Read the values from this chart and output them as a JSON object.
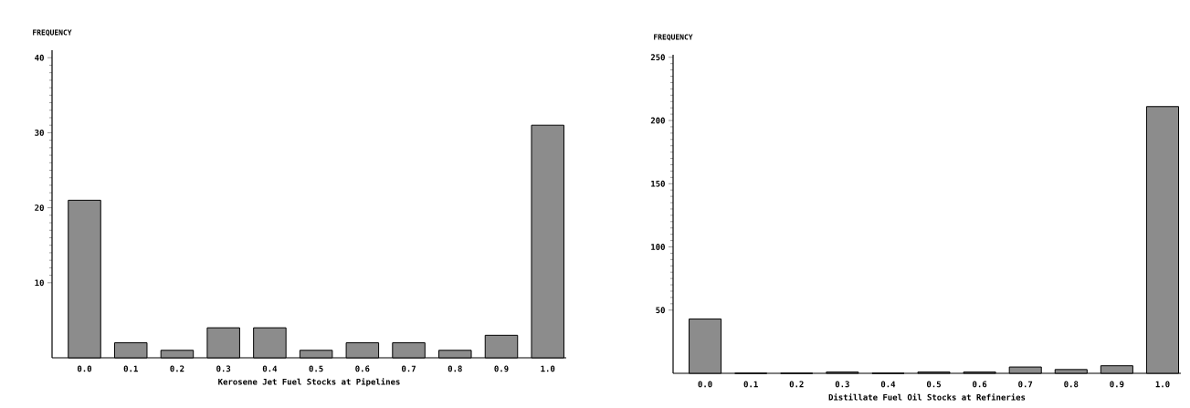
{
  "chart_data": [
    {
      "type": "bar",
      "ylabel": "FREQUENCY",
      "xlabel": "Kerosene Jet Fuel Stocks at Pipelines",
      "categories": [
        "0.0",
        "0.1",
        "0.2",
        "0.3",
        "0.4",
        "0.5",
        "0.6",
        "0.7",
        "0.8",
        "0.9",
        "1.0"
      ],
      "values": [
        21,
        2,
        1,
        4,
        4,
        1,
        2,
        2,
        1,
        3,
        31
      ],
      "color": "#8c8c8c",
      "ylim": [
        0,
        41
      ],
      "yticks": [
        10,
        20,
        30,
        40
      ],
      "grid": false
    },
    {
      "type": "bar",
      "ylabel": "FREQUENCY",
      "xlabel": "Distillate Fuel Oil Stocks at Refineries",
      "categories": [
        "0.0",
        "0.1",
        "0.2",
        "0.3",
        "0.4",
        "0.5",
        "0.6",
        "0.7",
        "0.8",
        "0.9",
        "1.0"
      ],
      "values": [
        43,
        0,
        0,
        1,
        0,
        1,
        1,
        5,
        3,
        6,
        211
      ],
      "color": "#8c8c8c",
      "ylim": [
        0,
        252
      ],
      "yticks": [
        50,
        100,
        150,
        200,
        250
      ],
      "grid": false
    }
  ]
}
